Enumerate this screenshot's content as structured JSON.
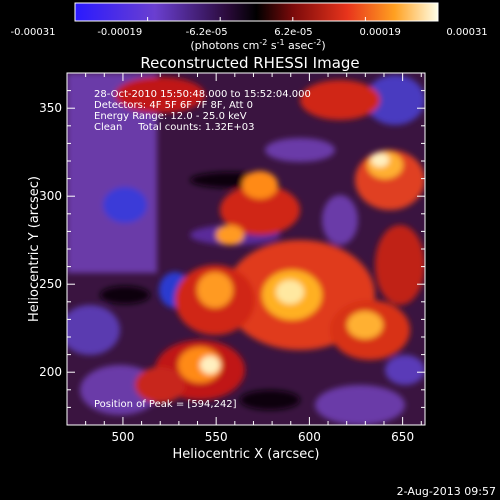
{
  "chart_data": {
    "type": "heatmap",
    "title": "Reconstructed RHESSI Image",
    "xlabel": "Heliocentric X (arcsec)",
    "ylabel": "Heliocentric Y (arcsec)",
    "xlim": [
      470,
      662
    ],
    "ylim": [
      170,
      370
    ],
    "x_ticks": [
      500,
      550,
      600,
      650
    ],
    "y_ticks": [
      200,
      250,
      300,
      350
    ],
    "colorbar": {
      "ticks": [
        "-0.00031",
        "-0.00019",
        "-6.2e-05",
        "6.2e-05",
        "0.00019",
        "0.00031"
      ],
      "units_text": "(photons cm",
      "units_sup1": "-2",
      "units_mid": " s",
      "units_sup2": "-1",
      "units_end": " asec",
      "units_sup3": "-2",
      "units_close": ")",
      "range": [
        -0.00031,
        0.00031
      ]
    },
    "annotations": [
      "28-Oct-2010 15:50:48.000 to 15:52:04.000",
      "Detectors: 4F 5F 6F 7F 8F, Att 0",
      "Energy Range: 12.0 - 25.0 keV",
      "Clean     Total counts: 1.32E+03"
    ],
    "peak_label": "Position of Peak = [594,242]",
    "peak": [
      594,
      242
    ],
    "colors": {
      "negative_low": "#1a1aff",
      "negative_mid": "#7a3fc0",
      "zero": "#000000",
      "positive_mid": "#e8341c",
      "positive_high": "#ffb000",
      "max": "#ffffff"
    }
  },
  "footer": {
    "date_stamp": "2-Aug-2013 09:57"
  }
}
